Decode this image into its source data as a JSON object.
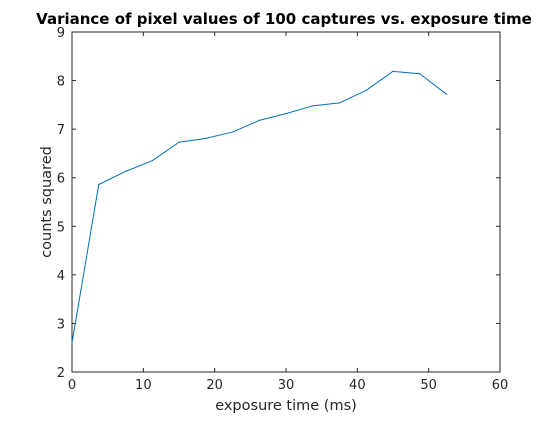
{
  "chart_data": {
    "type": "line",
    "title": "Variance of pixel values of 100 captures vs. exposure time",
    "xlabel": "exposure time (ms)",
    "ylabel": "counts squared",
    "xlim": [
      0,
      60
    ],
    "ylim": [
      2,
      9
    ],
    "xticks": [
      0,
      10,
      20,
      30,
      40,
      50,
      60
    ],
    "yticks": [
      2,
      3,
      4,
      5,
      6,
      7,
      8,
      9
    ],
    "grid": false,
    "legend": "none",
    "series": [
      {
        "x": [
          0,
          3.75,
          7.5,
          11.25,
          15,
          18.75,
          22.5,
          26.25,
          30,
          33.75,
          37.5,
          41.25,
          45,
          48.75,
          52.5
        ],
        "y": [
          2.6,
          5.86,
          6.13,
          6.35,
          6.73,
          6.81,
          6.94,
          7.18,
          7.32,
          7.48,
          7.54,
          7.8,
          8.19,
          8.14,
          7.72
        ],
        "color": "#0072bd"
      }
    ]
  }
}
